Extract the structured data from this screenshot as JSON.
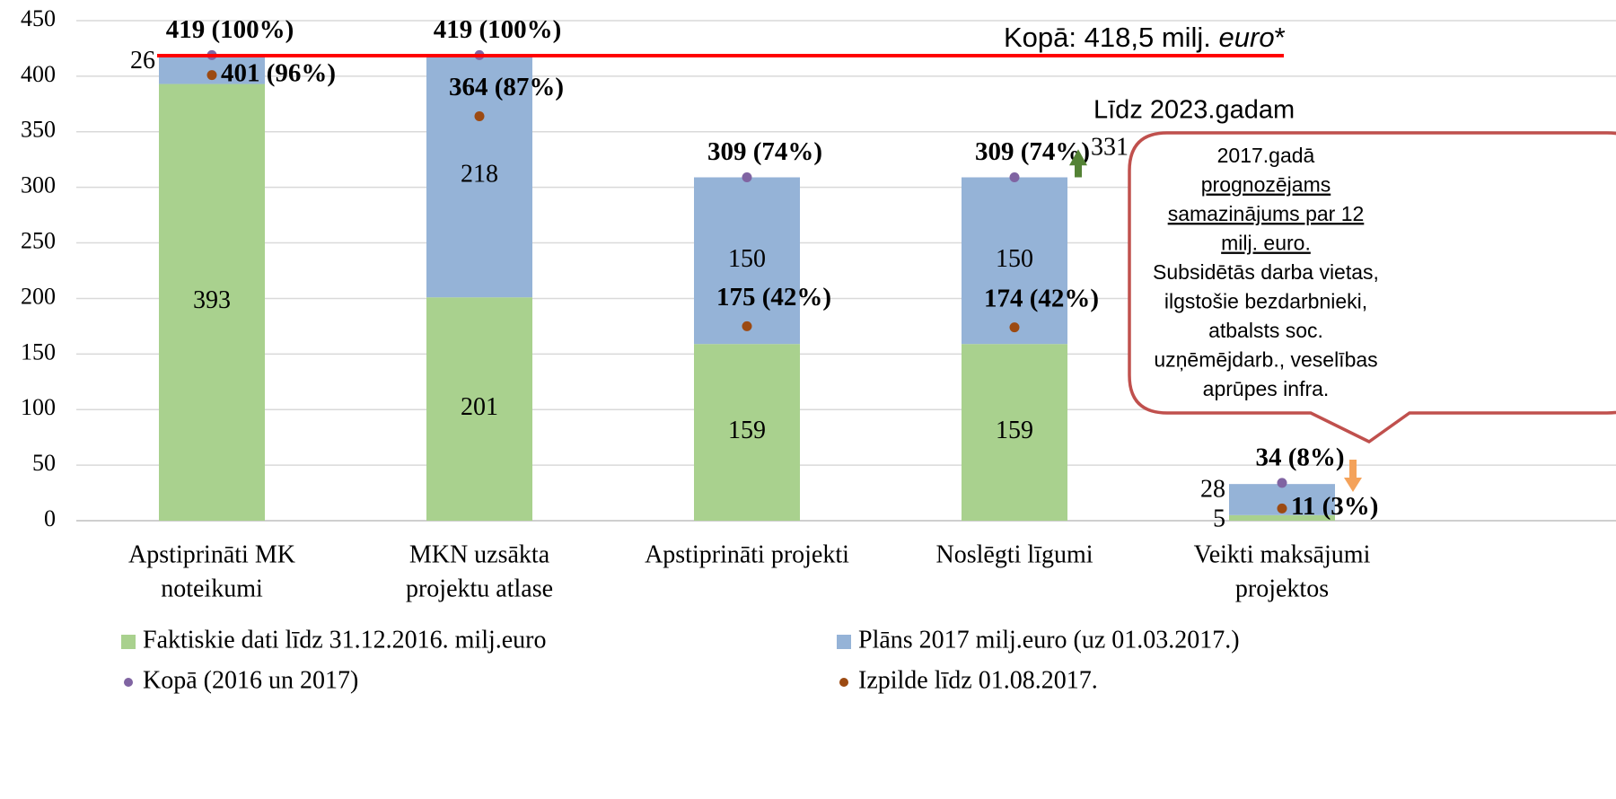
{
  "chart_data": {
    "type": "stacked_bar",
    "categories": [
      [
        "Apstiprināti MK",
        "noteikumi"
      ],
      [
        "MKN uzsākta",
        "projektu atlase"
      ],
      [
        "Apstiprināti projekti"
      ],
      [
        "Noslēgti līgumi"
      ],
      [
        "Veikti maksājumi",
        "projektos"
      ]
    ],
    "series": [
      {
        "name": "Faktiskie dati līdz 31.12.2016. milj.euro",
        "color": "#a9d18e",
        "values": [
          393,
          201,
          159,
          159,
          5
        ]
      },
      {
        "name": "Plāns 2017 milj.euro (uz 01.03.2017.)",
        "color": "#95b3d7",
        "values": [
          26,
          218,
          150,
          150,
          28
        ]
      }
    ],
    "points": [
      {
        "name": "Kopā (2016 un 2017)",
        "color": "#8064a2",
        "values": [
          419,
          419,
          309,
          309,
          34
        ],
        "value_labels": [
          "419 (100%)",
          "419 (100%)",
          "309 (74%)",
          "309 (74%)",
          "34 (8%)"
        ]
      },
      {
        "name": "Izpilde līdz 01.08.2017.",
        "color": "#9c4a12",
        "values": [
          401,
          364,
          175,
          174,
          11
        ],
        "value_labels": [
          "401 (96%)",
          "364 (87%)",
          "175 (42%)",
          "174 (42%)",
          "11 (3%)"
        ]
      }
    ],
    "ylim": [
      0,
      450
    ],
    "yticks": [
      0,
      50,
      100,
      150,
      200,
      250,
      300,
      350,
      400,
      450
    ],
    "grid": true,
    "reference_line": {
      "value": 418.5,
      "color": "#ff0000",
      "label_parts": [
        {
          "text": "Kopā: 418,5 milj. "
        },
        {
          "text": "euro",
          "italic": true
        },
        {
          "text": "*"
        }
      ]
    },
    "arrow": {
      "to": 331,
      "color": "#548235"
    },
    "callout": {
      "title": "Līdz 2023.gadam",
      "color": "#c0504d",
      "lines": [
        {
          "text": "2017.gadā"
        },
        {
          "text": "prognozējams",
          "underline": true
        },
        {
          "text": "samazinājums par 12",
          "underline": true
        },
        {
          "text": "milj. euro.",
          "underline": true
        },
        {
          "text": "Subsidētās darba vietas,"
        },
        {
          "text": "ilgstošie bezdarbnieki,"
        },
        {
          "text": "atbalsts soc."
        },
        {
          "text": "uzņēmējdarb., veselības"
        },
        {
          "text": "aprūpes infra."
        }
      ]
    }
  }
}
